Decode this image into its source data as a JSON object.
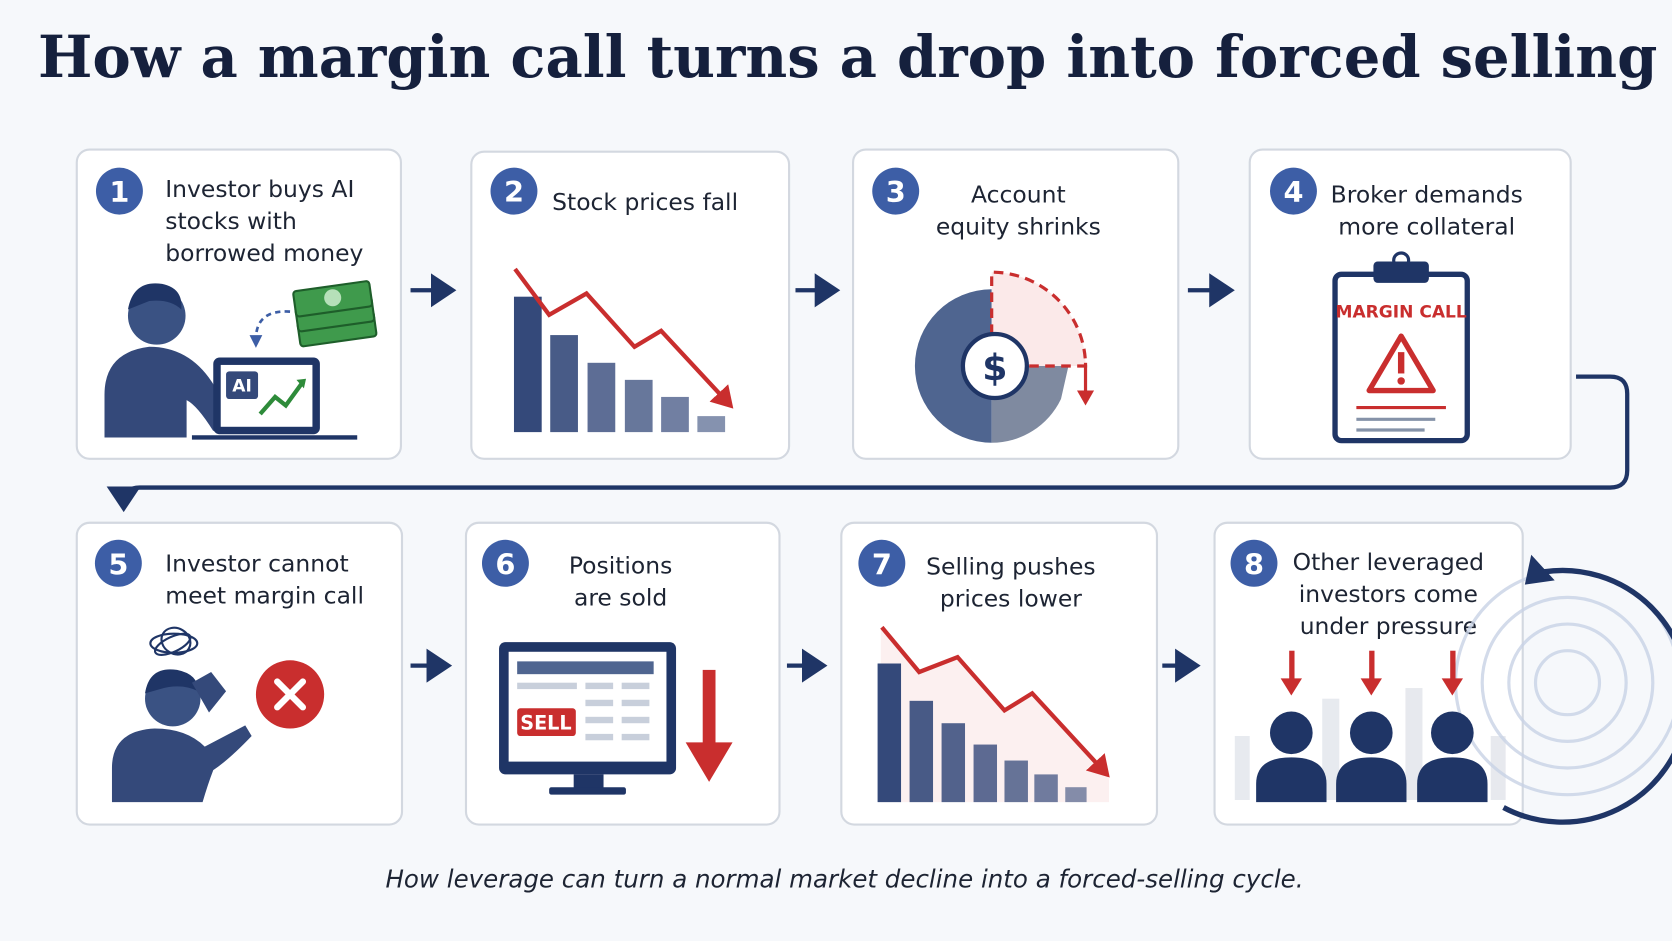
{
  "title": "How a margin call turns a drop into forced selling",
  "steps": [
    {
      "number": 1,
      "label": [
        "Investor buys AI",
        "stocks with",
        "borrowed money"
      ]
    },
    {
      "number": 2,
      "label": [
        "Stock prices fall"
      ]
    },
    {
      "number": 3,
      "label": [
        "Account",
        "equity shrinks"
      ]
    },
    {
      "number": 4,
      "label": [
        "Broker demands",
        "more collateral"
      ]
    },
    {
      "number": 5,
      "label": [
        "Investor cannot",
        "meet margin call"
      ]
    },
    {
      "number": 6,
      "label": [
        "Positions",
        "are sold"
      ]
    },
    {
      "number": 7,
      "label": [
        "Selling pushes",
        "prices lower"
      ]
    },
    {
      "number": 8,
      "label": [
        "Other leveraged",
        "investors come",
        "under pressure"
      ]
    }
  ],
  "icons": {
    "ai": "AI",
    "dollar": "$",
    "margin_call": "MARGIN CALL",
    "sell": "SELL"
  },
  "caption": "How leverage can turn a normal market decline into a forced-selling cycle."
}
